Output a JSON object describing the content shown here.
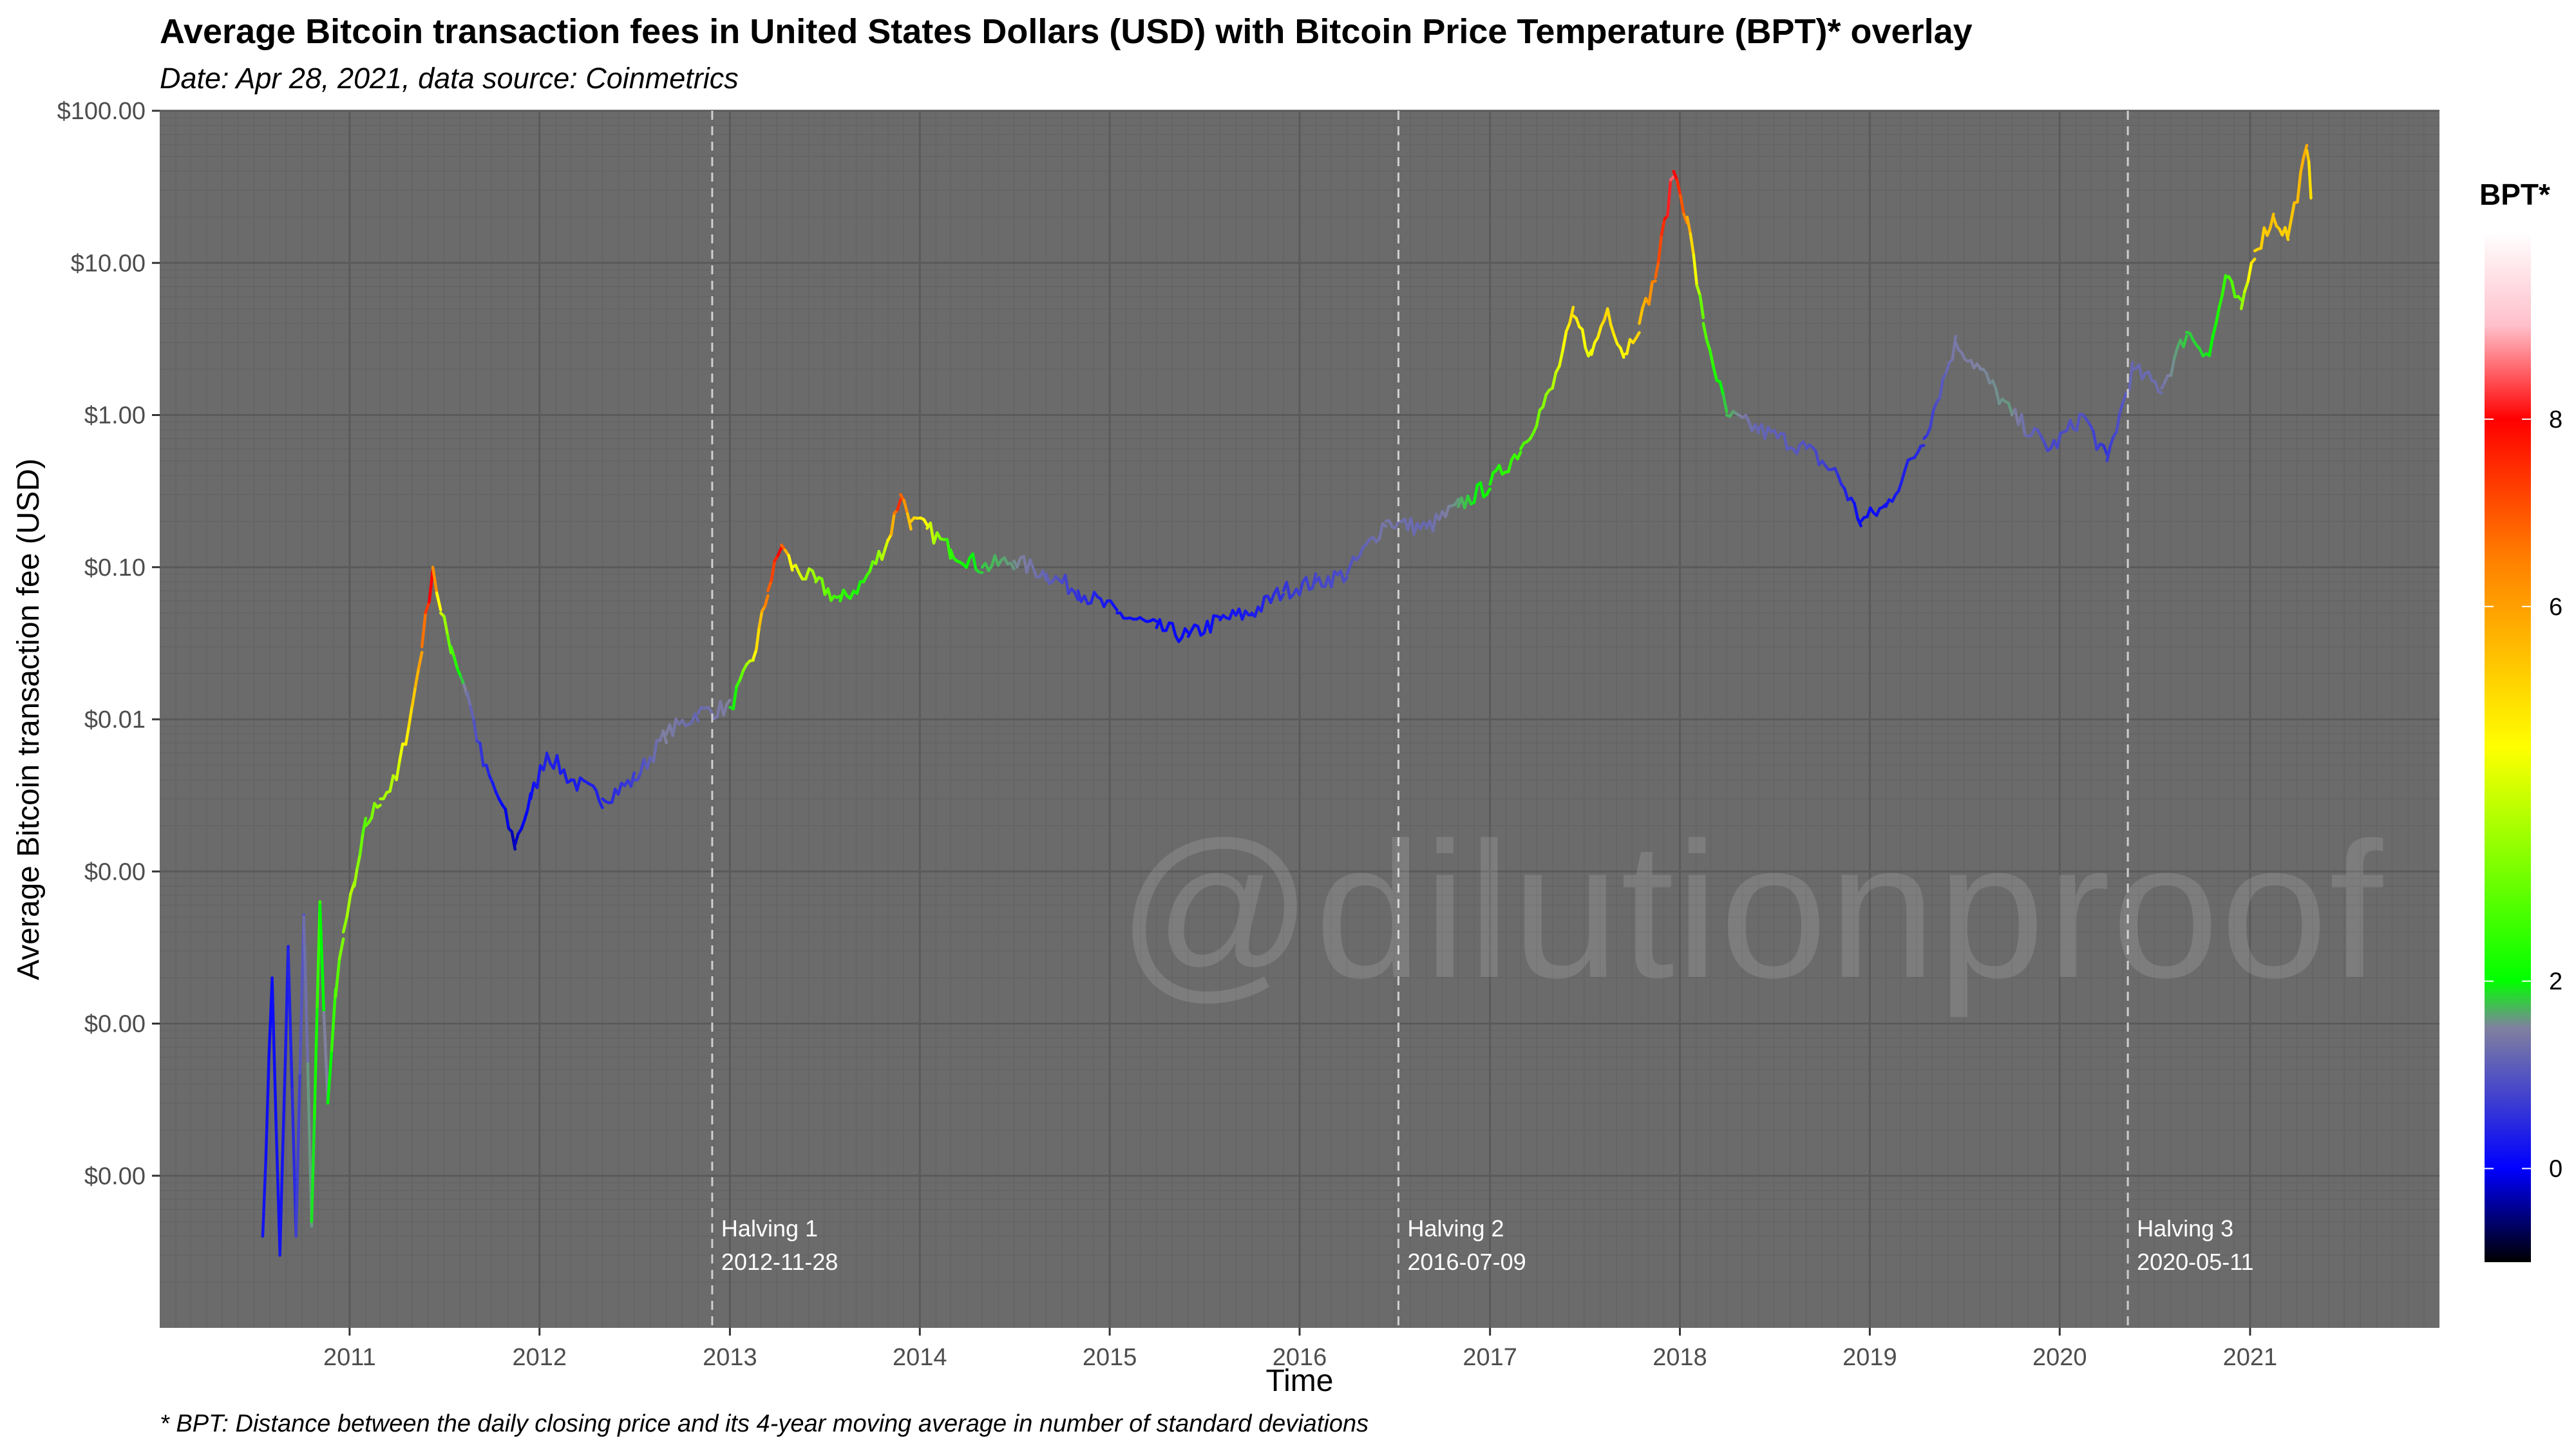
{
  "title": "Average Bitcoin transaction fees in United States Dollars (USD) with Bitcoin Price Temperature (BPT)* overlay",
  "subtitle": "Date: Apr 28, 2021, data source: Coinmetrics",
  "caption": "* BPT: Distance between the daily closing price and its 4-year moving average in number of standard deviations",
  "watermark": "@dilutionproof",
  "colors": {
    "panel": "#6b6b6b",
    "grid_major": "#5a5a5a",
    "grid_minor": "#646464",
    "halving_line": "#cfcfcf"
  },
  "chart_data": {
    "type": "line",
    "xlabel": "Time",
    "ylabel": "Average Bitcoin transaction fee (USD)",
    "y_scale": "log10",
    "ylim": [
      1e-06,
      100
    ],
    "xlim": [
      "2010-01-01",
      "2021-12-31"
    ],
    "x_ticks": [
      "2011",
      "2012",
      "2013",
      "2014",
      "2015",
      "2016",
      "2017",
      "2018",
      "2019",
      "2020",
      "2021"
    ],
    "y_ticks": [
      {
        "value": 100,
        "label": "$100.00"
      },
      {
        "value": 10,
        "label": "$10.00"
      },
      {
        "value": 1,
        "label": "$1.00"
      },
      {
        "value": 0.1,
        "label": "$0.10"
      },
      {
        "value": 0.01,
        "label": "$0.01"
      },
      {
        "value": 0.001,
        "label": "$0.00"
      },
      {
        "value": 0.0001,
        "label": "$0.00"
      },
      {
        "value": 1e-05,
        "label": "$0.00"
      }
    ],
    "legend": {
      "title": "BPT*",
      "position": "right",
      "range": [
        -1,
        10
      ],
      "breaks": [
        0,
        2,
        6,
        8
      ],
      "color_stops": [
        {
          "value": -1,
          "color": "#000000"
        },
        {
          "value": 0,
          "color": "#0000ff"
        },
        {
          "value": 1.5,
          "color": "#8080a0"
        },
        {
          "value": 2,
          "color": "#00ff00"
        },
        {
          "value": 4.5,
          "color": "#ffff00"
        },
        {
          "value": 6.5,
          "color": "#ff8000"
        },
        {
          "value": 8,
          "color": "#ff0000"
        },
        {
          "value": 9,
          "color": "#ffc0cb"
        },
        {
          "value": 10,
          "color": "#ffffff"
        }
      ]
    },
    "annotations": [
      {
        "date": "2012-11-28",
        "label": "Halving 1",
        "sublabel": "2012-11-28"
      },
      {
        "date": "2016-07-09",
        "label": "Halving 2",
        "sublabel": "2016-07-09"
      },
      {
        "date": "2020-05-11",
        "label": "Halving 3",
        "sublabel": "2020-05-11"
      }
    ],
    "series": [
      {
        "points": [
          [
            "2010-07-18",
            4e-06,
            0.3
          ],
          [
            "2010-08-05",
            0.0002,
            0.1
          ],
          [
            "2010-08-20",
            3e-06,
            0.2
          ],
          [
            "2010-09-05",
            0.0003,
            0.3
          ],
          [
            "2010-09-20",
            4e-06,
            0.5
          ],
          [
            "2010-10-05",
            0.0005,
            1.0
          ],
          [
            "2010-10-20",
            5e-06,
            1.6
          ],
          [
            "2010-11-05",
            0.0006,
            2.5
          ],
          [
            "2010-11-20",
            3e-05,
            1.5
          ],
          [
            "2010-12-05",
            0.00015,
            2.5
          ],
          [
            "2010-12-20",
            0.0004,
            3.2
          ],
          [
            "2011-01-10",
            0.0008,
            3.8
          ],
          [
            "2011-02-01",
            0.002,
            2.8
          ],
          [
            "2011-03-01",
            0.003,
            3.5
          ],
          [
            "2011-04-01",
            0.004,
            3.8
          ],
          [
            "2011-05-01",
            0.012,
            5.0
          ],
          [
            "2011-05-20",
            0.03,
            6.0
          ],
          [
            "2011-06-10",
            0.1,
            8.0
          ],
          [
            "2011-06-25",
            0.05,
            4.5
          ],
          [
            "2011-07-15",
            0.03,
            3.0
          ],
          [
            "2011-08-15",
            0.015,
            1.5
          ],
          [
            "2011-09-15",
            0.005,
            0.6
          ],
          [
            "2011-10-15",
            0.003,
            0.2
          ],
          [
            "2011-11-15",
            0.0015,
            -0.3
          ],
          [
            "2011-12-15",
            0.003,
            0.1
          ],
          [
            "2012-01-15",
            0.006,
            0.4
          ],
          [
            "2012-03-01",
            0.004,
            0.3
          ],
          [
            "2012-05-01",
            0.003,
            0.4
          ],
          [
            "2012-07-01",
            0.004,
            0.7
          ],
          [
            "2012-09-01",
            0.008,
            1.5
          ],
          [
            "2012-11-01",
            0.011,
            1.2
          ],
          [
            "2013-01-01",
            0.012,
            1.5
          ],
          [
            "2013-02-15",
            0.025,
            4.0
          ],
          [
            "2013-03-15",
            0.07,
            6.5
          ],
          [
            "2013-04-10",
            0.14,
            8.0
          ],
          [
            "2013-05-01",
            0.1,
            4.5
          ],
          [
            "2013-06-15",
            0.08,
            3.5
          ],
          [
            "2013-08-01",
            0.06,
            2.5
          ],
          [
            "2013-09-15",
            0.08,
            2.2
          ],
          [
            "2013-11-01",
            0.15,
            4.0
          ],
          [
            "2013-11-25",
            0.3,
            7.5
          ],
          [
            "2013-12-15",
            0.2,
            5.5
          ],
          [
            "2014-01-15",
            0.18,
            4.5
          ],
          [
            "2014-03-01",
            0.13,
            2.5
          ],
          [
            "2014-05-01",
            0.1,
            1.8
          ],
          [
            "2014-07-01",
            0.11,
            1.6
          ],
          [
            "2014-09-01",
            0.09,
            1.2
          ],
          [
            "2014-11-01",
            0.07,
            0.6
          ],
          [
            "2015-01-15",
            0.05,
            0.2
          ],
          [
            "2015-04-01",
            0.04,
            0.1
          ],
          [
            "2015-06-01",
            0.035,
            0.1
          ],
          [
            "2015-08-01",
            0.045,
            0.2
          ],
          [
            "2015-10-01",
            0.05,
            0.3
          ],
          [
            "2015-12-01",
            0.07,
            0.6
          ],
          [
            "2016-02-01",
            0.08,
            0.8
          ],
          [
            "2016-04-01",
            0.09,
            0.9
          ],
          [
            "2016-06-15",
            0.2,
            1.4
          ],
          [
            "2016-09-01",
            0.18,
            1.2
          ],
          [
            "2016-11-01",
            0.25,
            1.6
          ],
          [
            "2017-01-01",
            0.35,
            2.2
          ],
          [
            "2017-03-01",
            0.6,
            2.6
          ],
          [
            "2017-05-01",
            1.5,
            3.5
          ],
          [
            "2017-06-10",
            4.5,
            5.0
          ],
          [
            "2017-07-15",
            2.5,
            4.2
          ],
          [
            "2017-08-15",
            5.0,
            5.2
          ],
          [
            "2017-09-15",
            2.5,
            4.5
          ],
          [
            "2017-10-15",
            4.0,
            5.2
          ],
          [
            "2017-11-15",
            8.0,
            6.5
          ],
          [
            "2017-12-20",
            40.0,
            8.5
          ],
          [
            "2018-01-15",
            20.0,
            6.5
          ],
          [
            "2018-02-15",
            4.0,
            3.0
          ],
          [
            "2018-04-01",
            1.0,
            1.8
          ],
          [
            "2018-06-01",
            0.8,
            1.2
          ],
          [
            "2018-09-01",
            0.6,
            1.0
          ],
          [
            "2018-11-01",
            0.4,
            0.6
          ],
          [
            "2018-12-15",
            0.2,
            0.1
          ],
          [
            "2019-02-01",
            0.25,
            0.2
          ],
          [
            "2019-04-15",
            0.7,
            0.5
          ],
          [
            "2019-06-15",
            3.0,
            1.4
          ],
          [
            "2019-08-01",
            2.0,
            1.5
          ],
          [
            "2019-10-01",
            1.0,
            1.6
          ],
          [
            "2019-12-15",
            0.6,
            0.8
          ],
          [
            "2020-02-15",
            1.0,
            1.0
          ],
          [
            "2020-04-01",
            0.5,
            0.6
          ],
          [
            "2020-05-20",
            2.0,
            1.2
          ],
          [
            "2020-07-15",
            1.5,
            1.3
          ],
          [
            "2020-09-01",
            3.5,
            1.8
          ],
          [
            "2020-10-15",
            2.5,
            1.9
          ],
          [
            "2020-11-15",
            8.0,
            2.5
          ],
          [
            "2020-12-15",
            5.0,
            3.0
          ],
          [
            "2021-01-10",
            12.0,
            5.0
          ],
          [
            "2021-02-15",
            20.0,
            5.5
          ],
          [
            "2021-03-15",
            15.0,
            5.2
          ],
          [
            "2021-04-20",
            55.0,
            5.8
          ],
          [
            "2021-04-28",
            30.0,
            5.0
          ]
        ]
      }
    ]
  }
}
